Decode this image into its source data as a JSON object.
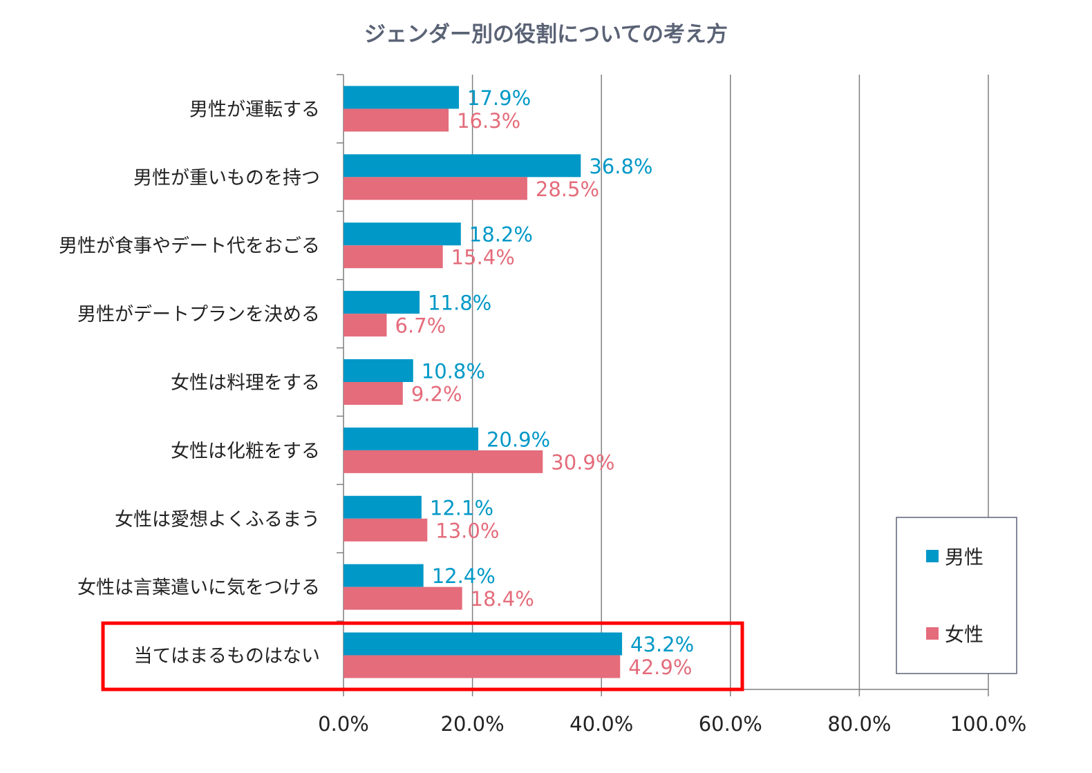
{
  "chart_data": {
    "type": "bar",
    "orientation": "horizontal",
    "title": "ジェンダー別の役割についての考え方",
    "categories": [
      "男性が運転する",
      "男性が重いものを持つ",
      "男性が食事やデート代をおごる",
      "男性がデートプランを決める",
      "女性は料理をする",
      "女性は化粧をする",
      "女性は愛想よくふるまう",
      "女性は言葉遣いに気をつける",
      "当てはまるものはない"
    ],
    "series": [
      {
        "name": "男性",
        "color": "#0098c7",
        "values": [
          17.9,
          36.8,
          18.2,
          11.8,
          10.8,
          20.9,
          12.1,
          12.4,
          43.2
        ],
        "labels": [
          "17.9%",
          "36.8%",
          "18.2%",
          "11.8%",
          "10.8%",
          "20.9%",
          "12.1%",
          "12.4%",
          "43.2%"
        ]
      },
      {
        "name": "女性",
        "color": "#e46c7b",
        "values": [
          16.3,
          28.5,
          15.4,
          6.7,
          9.2,
          30.9,
          13.0,
          18.4,
          42.9
        ],
        "labels": [
          "16.3%",
          "28.5%",
          "15.4%",
          "6.7%",
          "9.2%",
          "30.9%",
          "13.0%",
          "18.4%",
          "42.9%"
        ]
      }
    ],
    "xlim": [
      0,
      100
    ],
    "xticks": [
      "0.0%",
      "20.0%",
      "40.0%",
      "60.0%",
      "80.0%",
      "100.0%"
    ],
    "xtick_values": [
      0,
      20,
      40,
      60,
      80,
      100
    ],
    "grid": true,
    "legend_position": "bottom-right",
    "highlighted_category": "当てはまるものはない",
    "highlight_color": "#ff0000"
  }
}
